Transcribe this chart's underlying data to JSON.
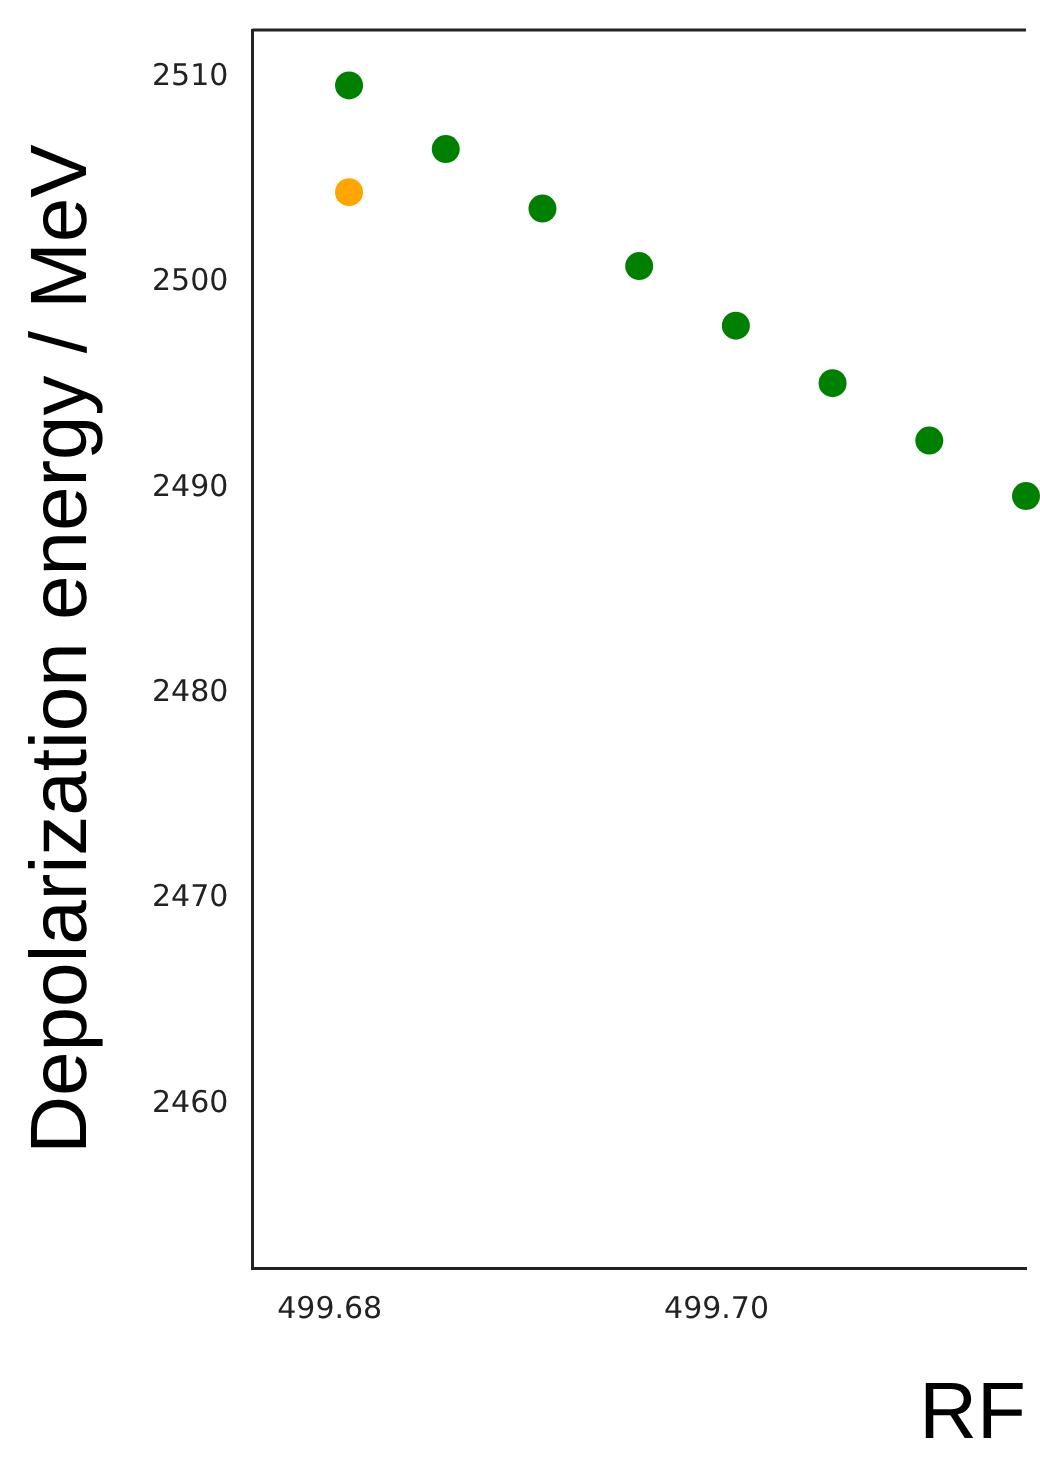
{
  "chart_data": {
    "type": "scatter",
    "xlabel": "RF",
    "ylabel": "Depolarization energy / MeV",
    "series": [
      {
        "color": "#008000",
        "x": [
          499.681,
          499.686,
          499.691,
          499.696,
          499.701,
          499.706,
          499.711,
          499.716
        ],
        "values": [
          2509.6,
          2506.5,
          2503.6,
          2500.8,
          2497.9,
          2495.1,
          2492.3,
          2489.6
        ]
      },
      {
        "color": "#ffa500",
        "x": [
          499.681
        ],
        "values": [
          2504.4
        ]
      }
    ],
    "xlim": [
      499.676,
      499.716
    ],
    "xticks": [
      {
        "value": 499.68,
        "label": "499.68"
      },
      {
        "value": 499.7,
        "label": "499.70"
      }
    ],
    "ylim": [
      2452,
      2512.3
    ],
    "yticks": [
      2460,
      2470,
      2480,
      2490,
      2500,
      2510
    ],
    "marker": "circle",
    "legend": false,
    "grid": false
  }
}
